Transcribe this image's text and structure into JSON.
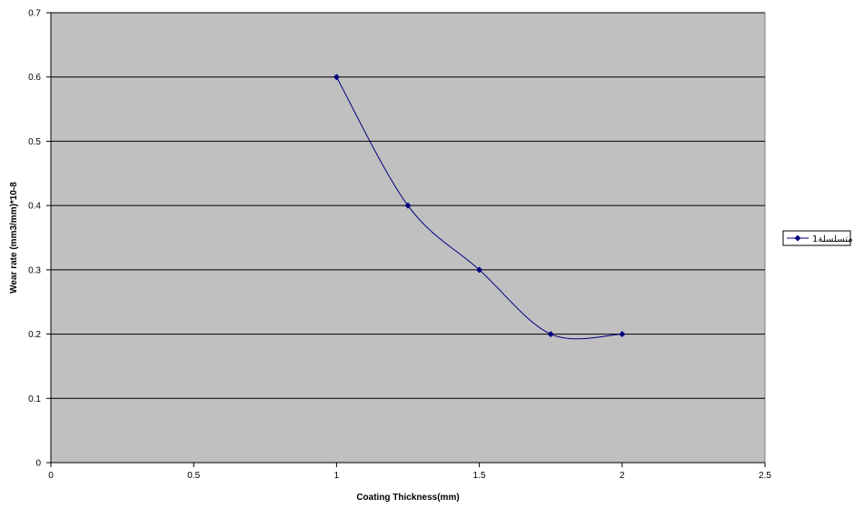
{
  "chart_data": {
    "type": "line",
    "title": "",
    "xlabel": "Coating Thickness(mm)",
    "ylabel": "Wear rate (mm3/mm)*10-8",
    "xlim": [
      0,
      2.5
    ],
    "ylim": [
      0,
      0.7
    ],
    "x_ticks": [
      "0",
      "0.5",
      "1",
      "1.5",
      "2",
      "2.5"
    ],
    "y_ticks": [
      "0",
      "0.1",
      "0.2",
      "0.3",
      "0.4",
      "0.5",
      "0.6",
      "0.7"
    ],
    "grid": "horizontal",
    "smoothed": true,
    "legend_position": "right",
    "plot_background": "#c0c0c0",
    "series": [
      {
        "name": "متسلسلة1",
        "color": "#000080",
        "marker": "diamond",
        "x": [
          1,
          1.25,
          1.5,
          1.75,
          2
        ],
        "y": [
          0.6,
          0.4,
          0.3,
          0.2,
          0.2
        ]
      }
    ]
  }
}
